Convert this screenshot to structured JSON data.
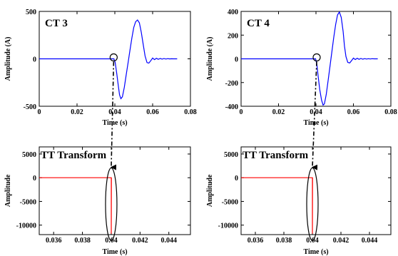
{
  "colors": {
    "signal": "#0000ff",
    "transform": "#ff0000",
    "axes": "#000000",
    "marker": "#000000"
  },
  "chart_data": [
    {
      "type": "line",
      "title": "CT 3",
      "xlabel": "Time (s)",
      "ylabel": "Amplitude (A)",
      "xlim": [
        0,
        0.08
      ],
      "ylim": [
        -500,
        500
      ],
      "xticks": [
        "0",
        "0.02",
        "0.04",
        "0.06",
        "0.08"
      ],
      "yticks": [
        "500",
        "0",
        "-500"
      ],
      "grid": false,
      "series": [
        {
          "color": "#0000ff",
          "x": [
            0,
            0.0395,
            0.0402,
            0.041,
            0.0418,
            0.0425,
            0.0432,
            0.044,
            0.045,
            0.046,
            0.047,
            0.048,
            0.049,
            0.05,
            0.051,
            0.052,
            0.053,
            0.054,
            0.055,
            0.056,
            0.057,
            0.058,
            0.059,
            0.06,
            0.061,
            0.062,
            0.063,
            0.064,
            0.065,
            0.066,
            0.067,
            0.068,
            0.069,
            0.07,
            0.071,
            0.072,
            0.073
          ],
          "y": [
            0,
            0,
            -40,
            -150,
            -280,
            -380,
            -420,
            -400,
            -300,
            -170,
            -40,
            90,
            220,
            330,
            390,
            410,
            380,
            280,
            150,
            30,
            -40,
            -45,
            -20,
            8,
            -8,
            6,
            -5,
            4,
            -3,
            3,
            -2,
            2,
            -1,
            1,
            0,
            0,
            0
          ]
        }
      ],
      "annotations": [
        {
          "type": "circle",
          "x": 0.039,
          "y": 0
        }
      ]
    },
    {
      "type": "line",
      "title": "CT 4",
      "xlabel": "Time (s)",
      "ylabel": "Amplitude (A)",
      "xlim": [
        0,
        0.08
      ],
      "ylim": [
        -400,
        400
      ],
      "xticks": [
        "0",
        "0.02",
        "0.04",
        "0.06",
        "0.08"
      ],
      "yticks": [
        "400",
        "200",
        "0",
        "-200",
        "-400"
      ],
      "grid": false,
      "series": [
        {
          "color": "#0000ff",
          "x": [
            0,
            0.0398,
            0.0405,
            0.0412,
            0.042,
            0.043,
            0.0438,
            0.0445,
            0.0455,
            0.0465,
            0.0475,
            0.0485,
            0.0495,
            0.0505,
            0.0515,
            0.0525,
            0.0535,
            0.0545,
            0.0552,
            0.056,
            0.057,
            0.058,
            0.059,
            0.06,
            0.061,
            0.062,
            0.063,
            0.064,
            0.065,
            0.066,
            0.067,
            0.068,
            0.069,
            0.07,
            0.071,
            0.072,
            0.073
          ],
          "y": [
            0,
            0,
            -50,
            -150,
            -260,
            -350,
            -390,
            -380,
            -300,
            -180,
            -60,
            60,
            180,
            290,
            370,
            395,
            350,
            230,
            110,
            20,
            -30,
            -35,
            -15,
            6,
            -6,
            5,
            -4,
            3,
            -3,
            2,
            -2,
            1,
            -1,
            1,
            0,
            0,
            0
          ]
        }
      ],
      "annotations": [
        {
          "type": "circle",
          "x": 0.04,
          "y": 0
        }
      ]
    },
    {
      "type": "line",
      "title": "TT Transform",
      "xlabel": "Time (s)",
      "ylabel": "Amplitude",
      "xlim": [
        0.035,
        0.0455
      ],
      "ylim": [
        -12000,
        6500
      ],
      "xticks": [
        "0.036",
        "0.038",
        "0.04",
        "0.042",
        "0.044"
      ],
      "yticks": [
        "5000",
        "0",
        "-5000",
        "-10000"
      ],
      "grid": false,
      "series": [
        {
          "color": "#ff0000",
          "x": [
            0.035,
            0.03999,
            0.04,
            0.04,
            0.04001
          ],
          "y": [
            0,
            0,
            0,
            -11800,
            0
          ]
        }
      ],
      "annotations": [
        {
          "type": "ellipse",
          "x": 0.04,
          "y": -5000
        }
      ]
    },
    {
      "type": "line",
      "title": "TT Transform",
      "xlabel": "Time (s)",
      "ylabel": "Amplitude",
      "xlim": [
        0.035,
        0.0455
      ],
      "ylim": [
        -12000,
        6500
      ],
      "xticks": [
        "0.036",
        "0.038",
        "0.04",
        "0.042",
        "0.044"
      ],
      "yticks": [
        "5000",
        "0",
        "-5000",
        "-10000"
      ],
      "grid": false,
      "series": [
        {
          "color": "#ff0000",
          "x": [
            0.035,
            0.03999,
            0.04,
            0.04,
            0.04001
          ],
          "y": [
            0,
            0,
            0,
            -11800,
            0
          ]
        }
      ],
      "annotations": [
        {
          "type": "ellipse",
          "x": 0.04,
          "y": -5000
        }
      ]
    }
  ]
}
